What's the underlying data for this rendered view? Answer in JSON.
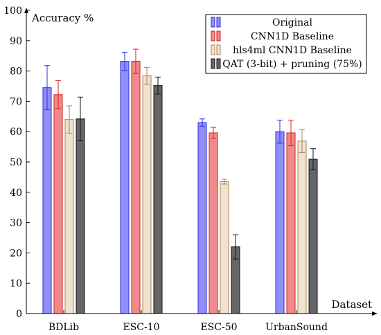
{
  "chart_data": {
    "type": "bar",
    "ylabel": "Accuracy %",
    "xlabel": "Dataset",
    "ylim": [
      0,
      100
    ],
    "yticks": [
      0,
      10,
      20,
      30,
      40,
      50,
      60,
      70,
      80,
      90,
      100
    ],
    "categories": [
      "BDLib",
      "ESC-10",
      "ESC-50",
      "UrbanSound"
    ],
    "error_bars": true,
    "legend_position": "top-right",
    "series": [
      {
        "name": "Original",
        "color": "#8f8ff5",
        "edge": "#2b2be0",
        "values": [
          74.5,
          83.2,
          63.0,
          60.0
        ],
        "errors": [
          7.3,
          3.0,
          1.2,
          3.8
        ]
      },
      {
        "name": "CNN1D Baseline",
        "color": "#f08a8a",
        "edge": "#d11f1f",
        "values": [
          72.2,
          83.2,
          59.6,
          59.6
        ],
        "errors": [
          4.6,
          4.0,
          1.8,
          4.2
        ]
      },
      {
        "name": "hls4ml CNN1D Baseline",
        "color": "#efe2cf",
        "edge": "#a8835a",
        "values": [
          64.0,
          78.4,
          43.5,
          56.9
        ],
        "errors": [
          4.5,
          2.8,
          0.8,
          3.8
        ]
      },
      {
        "name": "QAT (3-bit) + pruning (75%)",
        "color": "#666666",
        "edge": "#111111",
        "values": [
          64.2,
          75.2,
          22.0,
          50.9
        ],
        "errors": [
          7.2,
          2.8,
          4.0,
          3.5
        ]
      }
    ]
  }
}
